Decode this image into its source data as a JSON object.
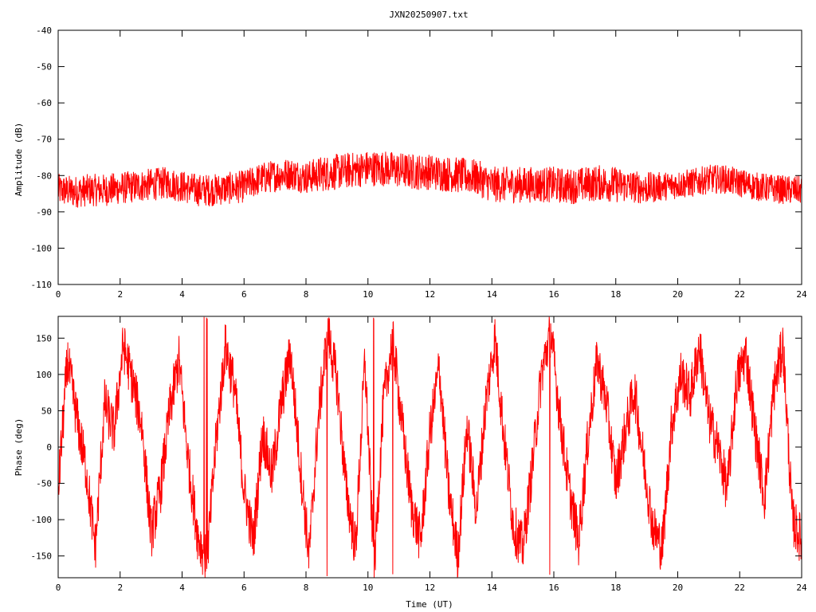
{
  "title": "JXN20250907.txt",
  "chart_data": [
    {
      "type": "line",
      "ylabel": "Amplitude (dB)",
      "xlabel": "",
      "xlim": [
        0,
        24
      ],
      "ylim": [
        -110,
        -40
      ],
      "xticks": [
        "0",
        "2",
        "4",
        "6",
        "8",
        "10",
        "12",
        "14",
        "16",
        "18",
        "20",
        "22",
        "24"
      ],
      "yticks": [
        "-40",
        "-50",
        "-60",
        "-70",
        "-80",
        "-90",
        "-100",
        "-110"
      ],
      "grid": false,
      "series": [
        {
          "color": "#ff0000",
          "x": [
            0,
            0.5,
            1,
            1.5,
            2,
            2.5,
            3,
            3.5,
            4,
            4.5,
            5,
            5.5,
            6,
            6.5,
            7,
            7.5,
            8,
            8.5,
            9,
            9.5,
            10,
            10.5,
            11,
            11.5,
            12,
            12.5,
            13,
            13.5,
            14,
            14.5,
            15,
            15.5,
            16,
            16.5,
            17,
            17.5,
            18,
            18.5,
            19,
            19.5,
            20,
            20.5,
            21,
            21.5,
            22,
            22.5,
            23,
            23.5,
            24
          ],
          "values": [
            -84,
            -84.5,
            -84,
            -84,
            -83.5,
            -83,
            -82.5,
            -82,
            -83,
            -84,
            -84,
            -83.5,
            -83,
            -81,
            -80,
            -79.5,
            -80.5,
            -79.5,
            -79,
            -78.5,
            -78,
            -78,
            -78.5,
            -79,
            -79,
            -79.5,
            -80,
            -80.5,
            -82.5,
            -82.5,
            -82.5,
            -82.5,
            -82.5,
            -83,
            -82.5,
            -82,
            -82.5,
            -83,
            -83.5,
            -83,
            -82.5,
            -82,
            -81,
            -81,
            -82,
            -83,
            -83.5,
            -84,
            -84
          ],
          "band": [
            4.5,
            4.5,
            4.5,
            4.5,
            4.5,
            4.5,
            4.5,
            4.5,
            4.5,
            4.5,
            4.5,
            4.5,
            4.5,
            4.5,
            4.5,
            4.5,
            4.5,
            5,
            5,
            5,
            5,
            5,
            5,
            5,
            5,
            5,
            5,
            5,
            5,
            5,
            5,
            5,
            5,
            5,
            5,
            5,
            5,
            4.5,
            4.5,
            4,
            4,
            4,
            4,
            4,
            4,
            4,
            4,
            4,
            4
          ]
        }
      ]
    },
    {
      "type": "line",
      "ylabel": "Phase (deg)",
      "xlabel": "Time (UT)",
      "xlim": [
        0,
        24
      ],
      "ylim": [
        -180,
        180
      ],
      "xticks": [
        "0",
        "2",
        "4",
        "6",
        "8",
        "10",
        "12",
        "14",
        "16",
        "18",
        "20",
        "22",
        "24"
      ],
      "yticks": [
        "150",
        "100",
        "50",
        "0",
        "-50",
        "-100",
        "-150"
      ],
      "grid": false,
      "series": [
        {
          "color": "#ff0000",
          "x": [
            0,
            0.3,
            0.6,
            0.9,
            1.2,
            1.5,
            1.8,
            2.1,
            2.4,
            2.7,
            3,
            3.3,
            3.6,
            3.9,
            4.2,
            4.5,
            4.8,
            5.1,
            5.4,
            5.7,
            6,
            6.3,
            6.6,
            6.9,
            7.2,
            7.5,
            7.8,
            8.1,
            8.4,
            8.7,
            9,
            9.3,
            9.6,
            9.9,
            10.2,
            10.5,
            10.8,
            11.1,
            11.4,
            11.7,
            12,
            12.3,
            12.6,
            12.9,
            13.2,
            13.5,
            13.8,
            14.1,
            14.4,
            14.7,
            15,
            15.3,
            15.6,
            15.9,
            16.2,
            16.5,
            16.8,
            17.1,
            17.4,
            17.7,
            18,
            18.3,
            18.6,
            18.9,
            19.2,
            19.5,
            19.8,
            20.1,
            20.4,
            20.7,
            21,
            21.3,
            21.6,
            21.9,
            22.2,
            22.5,
            22.8,
            23.1,
            23.4,
            23.7,
            24
          ],
          "values": [
            -60,
            120,
            40,
            -30,
            -140,
            60,
            20,
            140,
            90,
            30,
            -120,
            -60,
            50,
            120,
            -20,
            -120,
            -160,
            10,
            140,
            80,
            -60,
            -130,
            20,
            -40,
            60,
            130,
            -20,
            -150,
            40,
            160,
            90,
            -60,
            -140,
            120,
            -170,
            60,
            150,
            30,
            -80,
            -130,
            20,
            110,
            -60,
            -150,
            30,
            -90,
            60,
            150,
            10,
            -110,
            -140,
            -30,
            100,
            160,
            40,
            -60,
            -130,
            10,
            120,
            60,
            -50,
            20,
            80,
            -20,
            -110,
            -140,
            30,
            100,
            70,
            140,
            40,
            0,
            -60,
            90,
            130,
            20,
            -70,
            80,
            140,
            -100,
            -130
          ]
        }
      ]
    }
  ]
}
